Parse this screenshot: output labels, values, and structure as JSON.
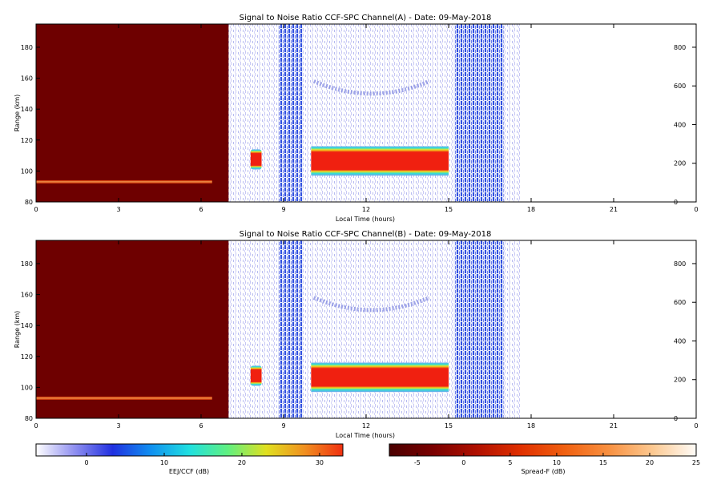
{
  "chart_data": [
    {
      "type": "heatmap",
      "title": "Signal to Noise Ratio CCF-SPC Channel(A) - Date: 09-May-2018",
      "xlabel": "Local Time (hours)",
      "ylabel": "Range (km)",
      "xlim": [
        0,
        24
      ],
      "ylim": [
        80,
        195
      ],
      "y2lim": [
        0,
        920
      ],
      "xticks": [
        "0",
        "3",
        "6",
        "9",
        "12",
        "15",
        "18",
        "21",
        "0"
      ],
      "yticks": [
        80,
        100,
        120,
        140,
        160,
        180
      ],
      "y2ticks": [
        0,
        200,
        400,
        600,
        800
      ],
      "features": {
        "spreadF_block": {
          "x": [
            0,
            7.0
          ],
          "y": [
            80,
            195
          ]
        },
        "spreadF_trace": {
          "x": [
            0,
            6.4
          ],
          "y": 93
        },
        "eej_blob": {
          "x": [
            7.8,
            8.2
          ],
          "y": [
            101,
            114
          ]
        },
        "eej_band": {
          "x": [
            10.0,
            15.0
          ],
          "y": [
            97,
            116
          ]
        },
        "dense_columns": [
          [
            8.8,
            9.7
          ],
          [
            15.2,
            17.0
          ]
        ],
        "upper_arc": {
          "x": [
            10.1,
            14.3
          ],
          "y_start": 158,
          "y_min": 150
        }
      }
    },
    {
      "type": "heatmap",
      "title": "Signal to Noise Ratio CCF-SPC Channel(B) - Date: 09-May-2018",
      "xlabel": "Local Time (hours)",
      "ylabel": "Range (km)",
      "xlim": [
        0,
        24
      ],
      "ylim": [
        80,
        195
      ],
      "y2lim": [
        0,
        920
      ],
      "xticks": [
        "0",
        "3",
        "6",
        "9",
        "12",
        "15",
        "18",
        "21",
        "0"
      ],
      "yticks": [
        80,
        100,
        120,
        140,
        160,
        180
      ],
      "y2ticks": [
        0,
        200,
        400,
        600,
        800
      ],
      "features": {
        "spreadF_block": {
          "x": [
            0,
            7.0
          ],
          "y": [
            80,
            195
          ]
        },
        "spreadF_trace": {
          "x": [
            0,
            6.4
          ],
          "y": 93
        },
        "eej_blob": {
          "x": [
            7.8,
            8.2
          ],
          "y": [
            101,
            114
          ]
        },
        "eej_band": {
          "x": [
            10.0,
            15.0
          ],
          "y": [
            97,
            116
          ]
        },
        "dense_columns": [
          [
            8.8,
            9.7
          ],
          [
            15.2,
            17.0
          ]
        ],
        "upper_arc": {
          "x": [
            10.1,
            14.3
          ],
          "y_start": 158,
          "y_min": 150
        }
      }
    }
  ],
  "colorbars": [
    {
      "label": "EEJ/CCF (dB)",
      "ticks": [
        "0",
        "10",
        "20",
        "30"
      ],
      "range": [
        -6.5,
        33
      ],
      "colors": [
        "#ffffff",
        "#9090f0",
        "#2030e0",
        "#1090f0",
        "#20e0e0",
        "#60f080",
        "#e0e020",
        "#f09020",
        "#f03010"
      ]
    },
    {
      "label": "Spread-F (dB)",
      "ticks": [
        "-5",
        "0",
        "5",
        "10",
        "15",
        "20",
        "25"
      ],
      "range": [
        -8,
        25
      ],
      "colors": [
        "#4a0000",
        "#7a0000",
        "#b01000",
        "#e03000",
        "#f06010",
        "#f89040",
        "#fcc890",
        "#fffcf8"
      ]
    }
  ]
}
